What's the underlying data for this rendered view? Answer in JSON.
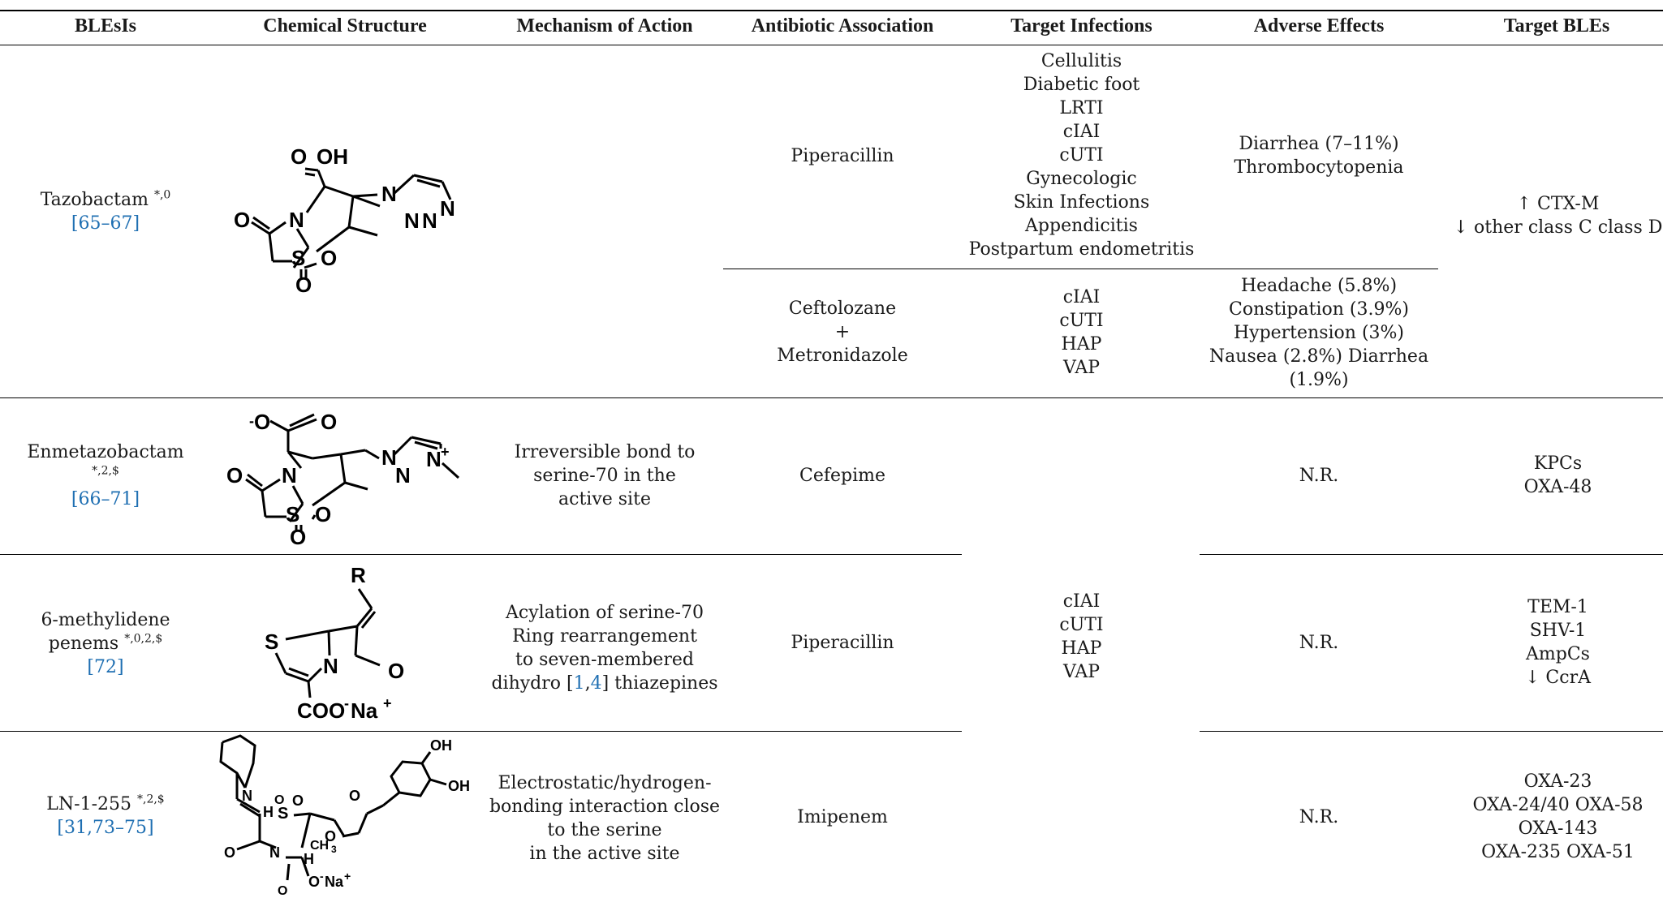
{
  "headers": [
    "BLEsIs",
    "Chemical Structure",
    "Mechanism of Action",
    "Antibiotic Association",
    "Target Infections",
    "Adverse Effects",
    "Target BLEs"
  ],
  "rows": {
    "tazobactam": {
      "name": "Tazobactam",
      "sup": "*,0",
      "refs": "[65–67]",
      "assoc1": "Piperacillin",
      "infections1": [
        "Cellulitis",
        "Diabetic foot",
        "LRTI",
        "cIAI",
        "cUTI",
        "Gynecologic",
        "Skin Infections",
        "Appendicitis",
        "Postpartum endometritis"
      ],
      "adverse1": [
        "Diarrhea (7–11%)",
        "Thrombocytopenia"
      ],
      "assoc2": [
        "Ceftolozane",
        "+",
        "Metronidazole"
      ],
      "infections2": [
        "cIAI",
        "cUTI",
        "HAP",
        "VAP"
      ],
      "adverse2": [
        "Headache (5.8%)",
        "Constipation (3.9%)",
        "Hypertension (3%)",
        "Nausea (2.8%) Diarrhea",
        "(1.9%)"
      ],
      "targets": [
        "↑ CTX-M",
        "↓ other class C class D"
      ]
    },
    "enmetazobactam": {
      "name": "Enmetazobactam",
      "sup": "*,2,$",
      "refs": "[66–71]",
      "mechanism": [
        "Irreversible bond to",
        "serine-70 in the",
        "active site"
      ],
      "assoc": "Cefepime",
      "adverse": "N.R.",
      "targets": [
        "KPCs",
        "OXA-48"
      ]
    },
    "penems": {
      "name": [
        "6-methylidene",
        "penems"
      ],
      "sup": "*,0,2,$",
      "refs": "[72]",
      "mechanism": [
        "Acylation of serine-70",
        "Ring rearrangement",
        "to seven-membered"
      ],
      "mechanism_last": {
        "pre": "dihydro [",
        "ref1": "1",
        "sep": ",",
        "ref2": "4",
        "post": "] thiazepines"
      },
      "assoc": "Piperacillin",
      "adverse": "N.R.",
      "targets": [
        "TEM-1",
        "SHV-1",
        "AmpCs",
        "↓ CcrA"
      ]
    },
    "ln": {
      "name": "LN-1-255",
      "sup": "*,2,$",
      "refs": "[31,73–75]",
      "mechanism": [
        "Electrostatic/hydrogen-",
        "bonding interaction close",
        "to the serine",
        "in the active site"
      ],
      "assoc": "Imipenem",
      "adverse": "N.R.",
      "targets": [
        "OXA-23",
        "OXA-24/40 OXA-58",
        "OXA-143",
        "OXA-235 OXA-51"
      ]
    },
    "shared_infections": [
      "cIAI",
      "cUTI",
      "HAP",
      "VAP"
    ]
  },
  "chem": {
    "tazo": [
      "O",
      "OH",
      "N",
      "N",
      "N",
      "N",
      "O",
      "N",
      "S",
      "O",
      "O"
    ],
    "enmeta": [
      "-",
      "O",
      "O",
      "N",
      "N",
      "N",
      "+",
      "O",
      "N",
      "S",
      "O",
      "O"
    ],
    "penem": [
      "R",
      "S",
      "N",
      "O",
      "COO",
      "-",
      "Na",
      "+"
    ],
    "ln": [
      "N",
      "O",
      "H",
      "S",
      "O",
      "O",
      "O",
      "OH",
      "OH",
      "N",
      "H",
      "CH",
      "3",
      "O",
      "O",
      "-",
      "Na",
      "+",
      "O"
    ]
  }
}
